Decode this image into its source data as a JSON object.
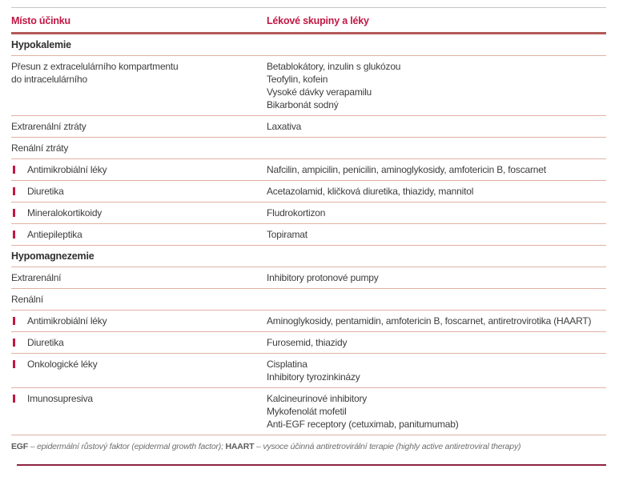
{
  "header": {
    "col1": "Místo účinku",
    "col2": "Lékové skupiny a léky"
  },
  "rows": [
    {
      "type": "section",
      "label": "Hypokalemie"
    },
    {
      "type": "row",
      "site": [
        "Přesun z extracelulárního kompartmentu",
        "do intracelulárního"
      ],
      "drugs": [
        "Betablokátory, inzulin s glukózou",
        "Teofylin, kofein",
        "Vysoké dávky verapamilu",
        "Bikarbonát sodný"
      ]
    },
    {
      "type": "row",
      "site": [
        "Extrarenální ztráty"
      ],
      "drugs": [
        "Laxativa"
      ]
    },
    {
      "type": "row",
      "site": [
        "Renální ztráty"
      ],
      "drugs": []
    },
    {
      "type": "bullet",
      "site": [
        "Antimikrobiální léky"
      ],
      "drugs": [
        "Nafcilin, ampicilin, penicilin, aminoglykosidy, amfotericin B, foscarnet"
      ]
    },
    {
      "type": "bullet",
      "site": [
        "Diuretika"
      ],
      "drugs": [
        "Acetazolamid, kličková diuretika, thiazidy, mannitol"
      ]
    },
    {
      "type": "bullet",
      "site": [
        "Mineralokortikoidy"
      ],
      "drugs": [
        "Fludrokortizon"
      ]
    },
    {
      "type": "bullet",
      "site": [
        "Antiepileptika"
      ],
      "drugs": [
        "Topiramat"
      ]
    },
    {
      "type": "section",
      "label": "Hypomagnezemie"
    },
    {
      "type": "row",
      "site": [
        "Extrarenální"
      ],
      "drugs": [
        "Inhibitory protonové pumpy"
      ]
    },
    {
      "type": "row",
      "site": [
        "Renální"
      ],
      "drugs": []
    },
    {
      "type": "bullet",
      "site": [
        "Antimikrobiální léky"
      ],
      "drugs": [
        "Aminoglykosidy, pentamidin, amfotericin B, foscarnet, antiretrovirotika (HAART)"
      ]
    },
    {
      "type": "bullet",
      "site": [
        "Diuretika"
      ],
      "drugs": [
        "Furosemid, thiazidy"
      ]
    },
    {
      "type": "bullet",
      "site": [
        "Onkologické léky"
      ],
      "drugs": [
        "Cisplatina",
        "Inhibitory tyrozinkinázy"
      ]
    },
    {
      "type": "bullet",
      "site": [
        "Imunosupresiva"
      ],
      "drugs": [
        "Kalcineurinové inhibitory",
        "Mykofenolát mofetil",
        "Anti-EGF receptory (cetuximab, panitumumab)"
      ]
    }
  ],
  "footnote": {
    "segments": [
      {
        "text": "EGF",
        "style": "bold"
      },
      {
        "text": " – epidermální růstový faktor (epidermal growth factor); ",
        "style": "italic"
      },
      {
        "text": "HAART",
        "style": "bold"
      },
      {
        "text": " – vysoce účinná antiretrovirální terapie (highly active antiretroviral therapy)",
        "style": "italic"
      }
    ]
  },
  "colors": {
    "accent_red": "#c11743",
    "header_rule": "#b35b59",
    "row_rule": "#e0b1a4",
    "top_rule": "#c6c6c6",
    "bottom_rule": "#8e2342",
    "body_text": "#3d3d3d"
  }
}
